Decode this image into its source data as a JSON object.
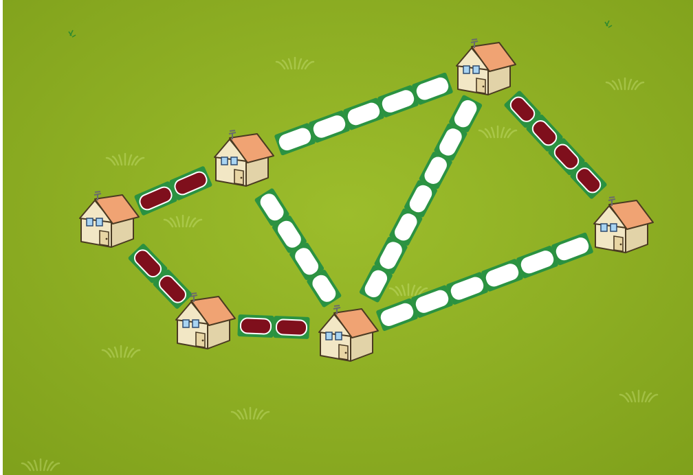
{
  "game": {
    "board": "grass-field",
    "colors": {
      "grass_center": "#9cbd2c",
      "grass_edge": "#7fa01b",
      "road_open": "#ffffff",
      "road_claimed": "#7f0f1c",
      "road_border": "#1f8e45",
      "house_wall": "#f2e7c5",
      "house_roof": "#f0a373",
      "house_window": "#a8d4f2",
      "house_door": "#e8d5a4"
    },
    "houses": [
      {
        "id": "house-a"
      },
      {
        "id": "house-b"
      },
      {
        "id": "house-c"
      },
      {
        "id": "house-d"
      },
      {
        "id": "house-e"
      },
      {
        "id": "house-f"
      }
    ],
    "roads": [
      {
        "id": "road-a-b",
        "from": "house-a",
        "to": "house-b",
        "state": "claimed"
      },
      {
        "id": "road-b-c",
        "from": "house-b",
        "to": "house-c",
        "state": "open"
      },
      {
        "id": "road-c-f",
        "from": "house-c",
        "to": "house-f",
        "state": "claimed"
      },
      {
        "id": "road-a-d",
        "from": "house-a",
        "to": "house-d",
        "state": "claimed"
      },
      {
        "id": "road-d-e",
        "from": "house-d",
        "to": "house-e",
        "state": "claimed"
      },
      {
        "id": "road-b-e",
        "from": "house-b",
        "to": "house-e",
        "state": "open"
      },
      {
        "id": "road-c-e",
        "from": "house-c",
        "to": "house-e",
        "state": "open"
      },
      {
        "id": "road-e-f",
        "from": "house-e",
        "to": "house-f",
        "state": "open"
      }
    ]
  }
}
